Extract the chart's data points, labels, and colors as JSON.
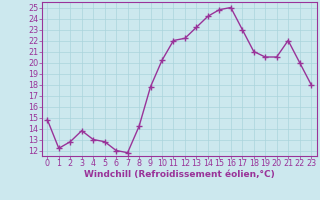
{
  "x": [
    0,
    1,
    2,
    3,
    4,
    5,
    6,
    7,
    8,
    9,
    10,
    11,
    12,
    13,
    14,
    15,
    16,
    17,
    18,
    19,
    20,
    21,
    22,
    23
  ],
  "y": [
    14.8,
    12.2,
    12.8,
    13.8,
    13.0,
    12.8,
    12.0,
    11.8,
    14.2,
    17.8,
    20.2,
    22.0,
    22.2,
    23.2,
    24.2,
    24.8,
    25.0,
    23.0,
    21.0,
    20.5,
    20.5,
    22.0,
    20.0,
    18.0
  ],
  "ylim": [
    11.5,
    25.5
  ],
  "yticks": [
    12,
    13,
    14,
    15,
    16,
    17,
    18,
    19,
    20,
    21,
    22,
    23,
    24,
    25
  ],
  "xticks": [
    0,
    1,
    2,
    3,
    4,
    5,
    6,
    7,
    8,
    9,
    10,
    11,
    12,
    13,
    14,
    15,
    16,
    17,
    18,
    19,
    20,
    21,
    22,
    23
  ],
  "line_color": "#993399",
  "marker": "+",
  "marker_size": 4,
  "bg_color": "#cce8ee",
  "grid_color": "#aad4dc",
  "xlabel": "Windchill (Refroidissement éolien,°C)",
  "xlabel_fontsize": 6.5,
  "tick_fontsize": 5.8,
  "line_width": 1.0
}
